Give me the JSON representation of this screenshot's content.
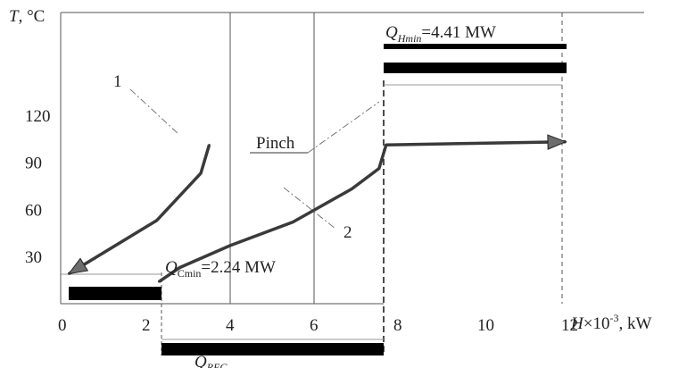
{
  "chart_data": {
    "type": "line",
    "ylabel": "T, °C",
    "xlabel": "H×10⁻³, kW",
    "xlim": [
      0,
      14
    ],
    "ylim": [
      0,
      135
    ],
    "x_ticks": [
      "0",
      "2",
      "4",
      "6",
      "8",
      "10",
      "12"
    ],
    "x_tick_values": [
      0,
      2,
      4,
      6,
      8,
      10,
      12
    ],
    "y_ticks": [
      "30",
      "60",
      "90",
      "120"
    ],
    "y_tick_values": [
      30,
      60,
      90,
      120
    ],
    "series": [
      {
        "name": "1",
        "values": [
          {
            "x": 3.5,
            "y": 101
          },
          {
            "x": 3.3,
            "y": 83
          },
          {
            "x": 2.25,
            "y": 53
          },
          {
            "x": 0.15,
            "y": 19
          }
        ]
      },
      {
        "name": "2",
        "values": [
          {
            "x": 2.3,
            "y": 14
          },
          {
            "x": 2.8,
            "y": 23
          },
          {
            "x": 4.0,
            "y": 37
          },
          {
            "x": 5.5,
            "y": 52
          },
          {
            "x": 6.9,
            "y": 73
          },
          {
            "x": 7.55,
            "y": 86
          },
          {
            "x": 7.72,
            "y": 101
          },
          {
            "x": 12.0,
            "y": 103
          }
        ]
      }
    ],
    "annotations": {
      "q_hmin": "Q_Hmin=4.41 MW",
      "q_cmin": "Q_Cmin=2.24 MW",
      "q_rec": "Q_REC=…",
      "pinch": "Pinch"
    },
    "grid": true
  },
  "labels": {
    "y_axis_T": "T",
    "y_axis_unit": ", °C",
    "x_axis_H": "H",
    "x_axis_rest": "×10",
    "x_axis_exp": "-3",
    "x_axis_unit": ", kW",
    "curve1": "1",
    "curve2": "2",
    "pinch": "Pinch",
    "qh_Q": "Q",
    "qh_sub": "Hmin",
    "qh_val": "=4.41 MW",
    "qc_Q": "Q",
    "qc_sub": "Cmin",
    "qc_val": "=2.24 MW",
    "qr_Q": "Q",
    "qr_sub": "REC"
  },
  "colors": {
    "hot_curve": "#3a3a3a",
    "cold_curve": "#3a3a3a",
    "arrow_head": "#6d6d6d",
    "bar": "#000000",
    "grid": "#555555"
  }
}
